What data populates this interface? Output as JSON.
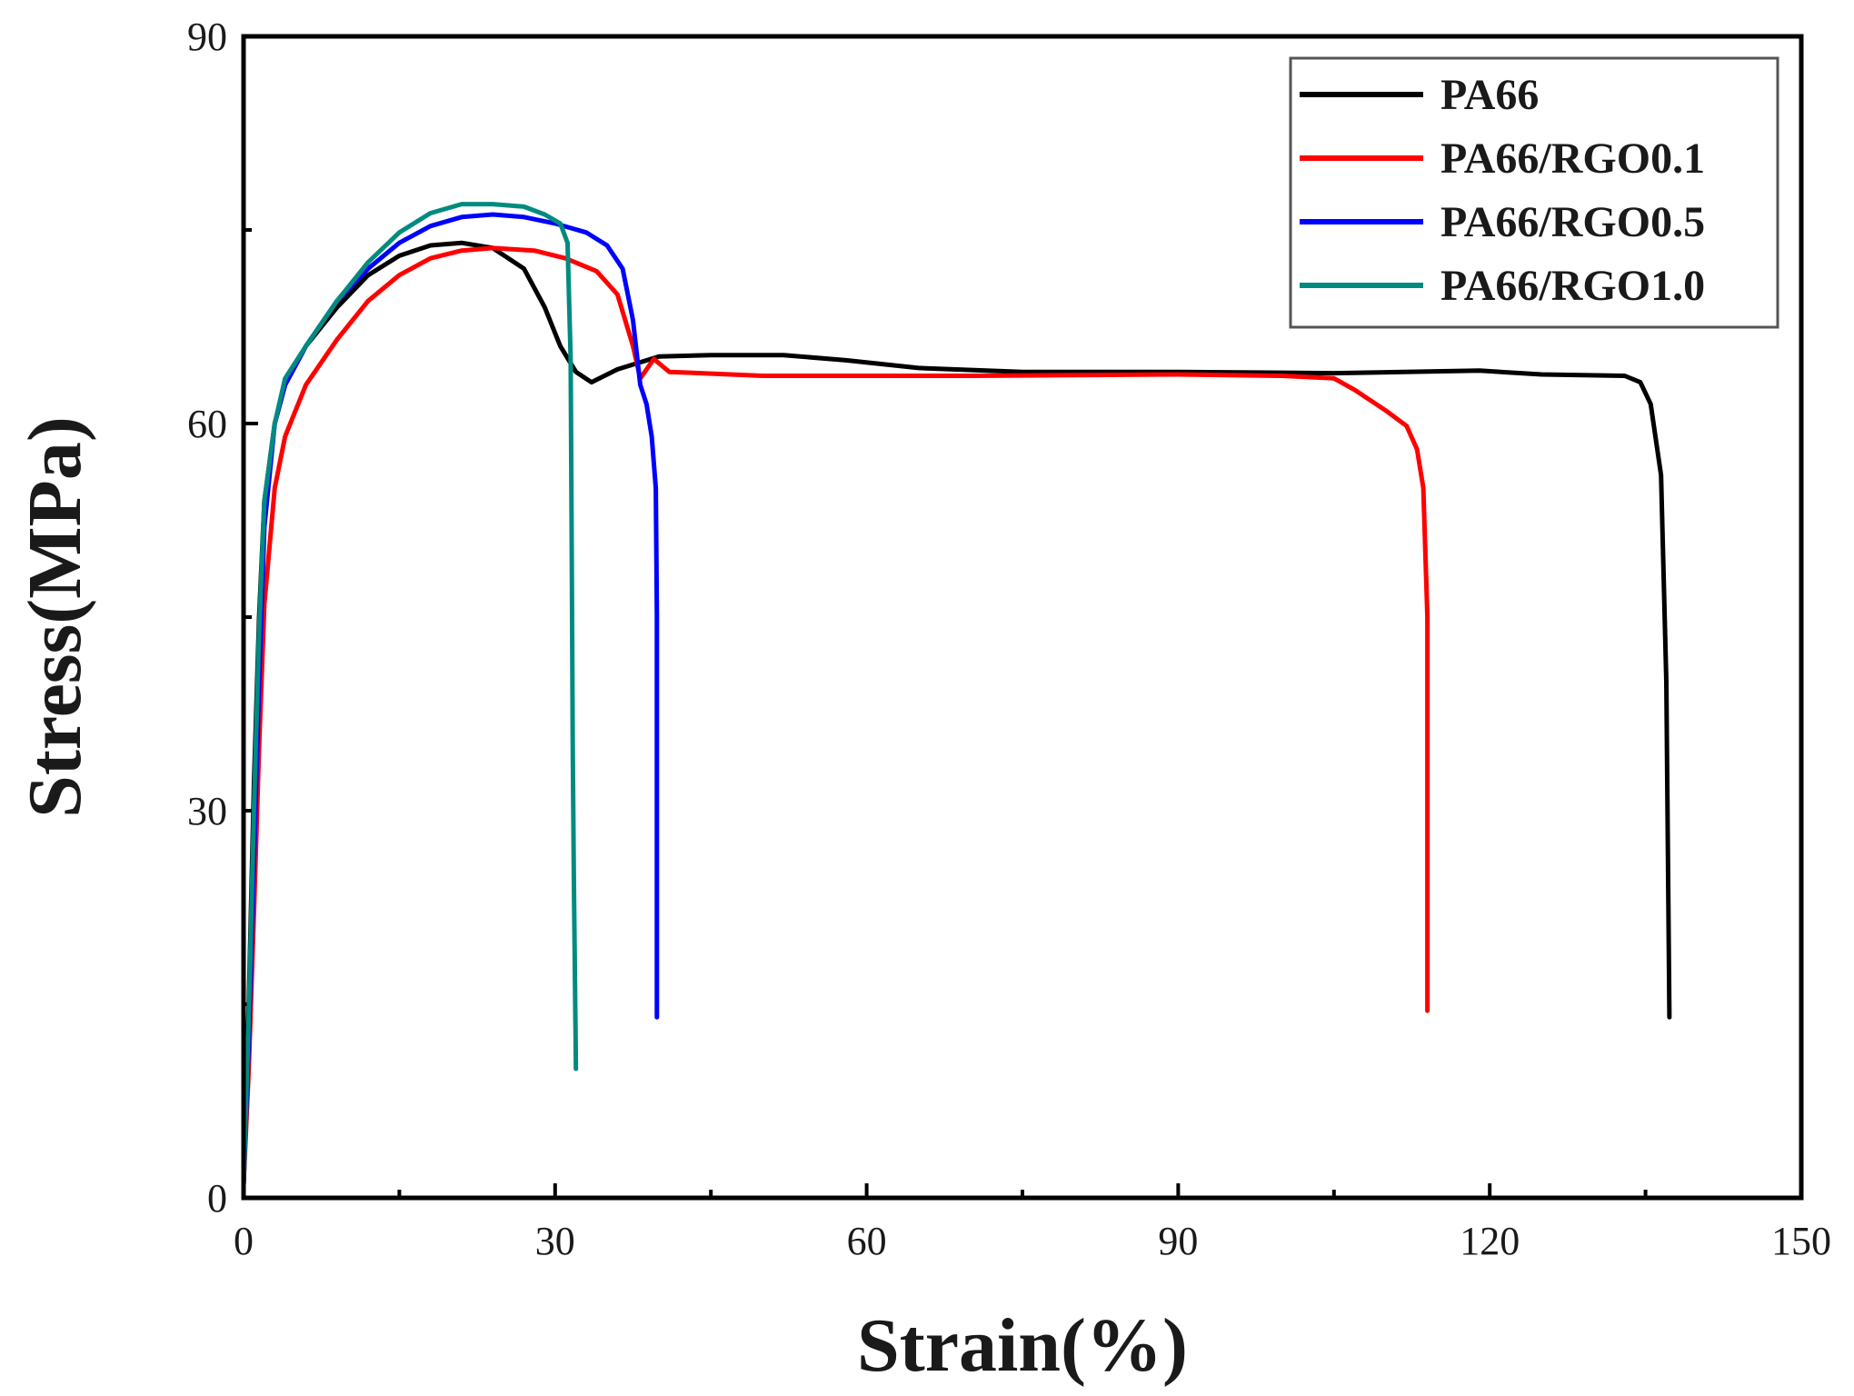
{
  "chart_data": {
    "type": "line",
    "title": "",
    "xlabel": "Strain(%)",
    "ylabel": "Stress(MPa)",
    "xlim": [
      0,
      150
    ],
    "ylim": [
      0,
      90
    ],
    "x_ticks": [
      0,
      30,
      60,
      90,
      120,
      150
    ],
    "y_ticks": [
      0,
      30,
      60,
      90
    ],
    "legend_position": "top-right",
    "series": [
      {
        "name": "PA66",
        "color": "#000000",
        "points": [
          [
            0,
            1
          ],
          [
            0.5,
            15
          ],
          [
            1,
            32
          ],
          [
            1.5,
            45
          ],
          [
            2,
            54
          ],
          [
            3,
            60
          ],
          [
            4,
            63
          ],
          [
            6,
            66
          ],
          [
            9,
            69
          ],
          [
            12,
            71.5
          ],
          [
            15,
            73
          ],
          [
            18,
            73.8
          ],
          [
            21,
            74
          ],
          [
            24,
            73.6
          ],
          [
            27,
            72
          ],
          [
            29,
            69
          ],
          [
            30.5,
            66
          ],
          [
            32,
            64
          ],
          [
            33.5,
            63.2
          ],
          [
            36,
            64.2
          ],
          [
            40,
            65.2
          ],
          [
            45,
            65.3
          ],
          [
            52,
            65.3
          ],
          [
            58,
            64.9
          ],
          [
            65,
            64.3
          ],
          [
            75,
            64
          ],
          [
            90,
            64
          ],
          [
            105,
            63.9
          ],
          [
            119,
            64.1
          ],
          [
            125,
            63.8
          ],
          [
            133,
            63.7
          ],
          [
            134.5,
            63.2
          ],
          [
            135.5,
            61.5
          ],
          [
            136.5,
            56
          ],
          [
            137,
            40
          ],
          [
            137.3,
            14
          ]
        ]
      },
      {
        "name": "PA66/RGO0.1",
        "color": "#ff0000",
        "points": [
          [
            0,
            1
          ],
          [
            0.5,
            10
          ],
          [
            1,
            22
          ],
          [
            1.5,
            35
          ],
          [
            2,
            46
          ],
          [
            3,
            55
          ],
          [
            4,
            59
          ],
          [
            6,
            63
          ],
          [
            9,
            66.5
          ],
          [
            12,
            69.5
          ],
          [
            15,
            71.5
          ],
          [
            18,
            72.8
          ],
          [
            21,
            73.4
          ],
          [
            24,
            73.6
          ],
          [
            28,
            73.4
          ],
          [
            31,
            72.8
          ],
          [
            34,
            71.8
          ],
          [
            36,
            70
          ],
          [
            37.5,
            66
          ],
          [
            38.2,
            63.5
          ],
          [
            39.5,
            65
          ],
          [
            41,
            64
          ],
          [
            50,
            63.7
          ],
          [
            70,
            63.7
          ],
          [
            90,
            63.8
          ],
          [
            100,
            63.7
          ],
          [
            105,
            63.5
          ],
          [
            107,
            62.6
          ],
          [
            110,
            61
          ],
          [
            112,
            59.8
          ],
          [
            113,
            58
          ],
          [
            113.6,
            55
          ],
          [
            114,
            45
          ],
          [
            114,
            14.5
          ]
        ]
      },
      {
        "name": "PA66/RGO0.5",
        "color": "#0000ff",
        "points": [
          [
            0,
            1
          ],
          [
            0.5,
            12
          ],
          [
            1,
            26
          ],
          [
            1.5,
            40
          ],
          [
            2,
            52
          ],
          [
            3,
            60
          ],
          [
            4,
            63
          ],
          [
            6,
            66
          ],
          [
            9,
            69.5
          ],
          [
            12,
            72
          ],
          [
            15,
            74
          ],
          [
            18,
            75.3
          ],
          [
            21,
            76
          ],
          [
            24,
            76.2
          ],
          [
            27,
            76
          ],
          [
            30,
            75.5
          ],
          [
            33,
            74.8
          ],
          [
            35,
            73.8
          ],
          [
            36.5,
            72
          ],
          [
            37.5,
            68
          ],
          [
            38.2,
            63
          ],
          [
            38.8,
            61.5
          ],
          [
            39.3,
            59
          ],
          [
            39.7,
            55
          ],
          [
            39.8,
            45
          ],
          [
            39.8,
            14
          ]
        ]
      },
      {
        "name": "PA66/RGO1.0",
        "color": "#008b80",
        "points": [
          [
            0,
            1
          ],
          [
            0.5,
            14
          ],
          [
            1,
            30
          ],
          [
            1.5,
            44
          ],
          [
            2,
            54
          ],
          [
            3,
            60
          ],
          [
            4,
            63.5
          ],
          [
            6,
            66
          ],
          [
            9,
            69.5
          ],
          [
            12,
            72.5
          ],
          [
            15,
            74.8
          ],
          [
            18,
            76.3
          ],
          [
            21,
            77
          ],
          [
            24,
            77
          ],
          [
            27,
            76.8
          ],
          [
            29,
            76.2
          ],
          [
            30.5,
            75.5
          ],
          [
            31.2,
            74
          ],
          [
            31.5,
            65
          ],
          [
            31.6,
            50
          ],
          [
            31.7,
            35
          ],
          [
            31.8,
            25
          ],
          [
            32,
            10
          ]
        ]
      }
    ]
  }
}
